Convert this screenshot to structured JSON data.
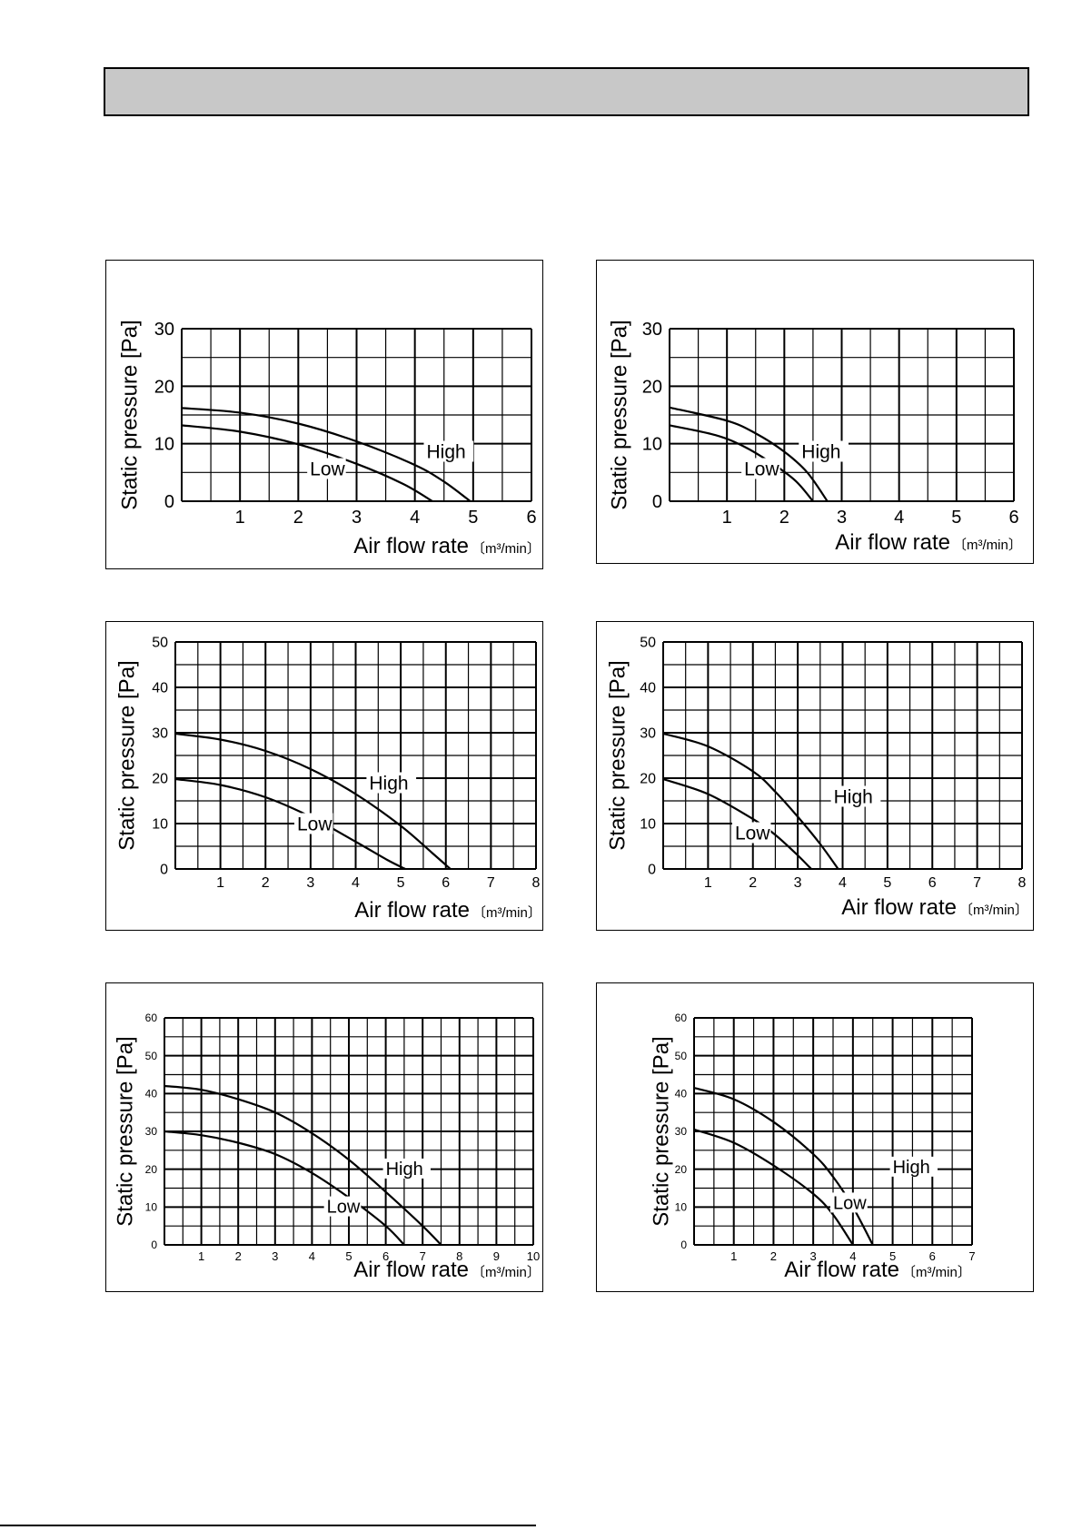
{
  "chart_data": [
    {
      "type": "line",
      "ylabel": "Static pressure [Pa]",
      "xlabel": "Air flow rate",
      "xunit": "〔m³/min〕",
      "xlim": [
        0,
        6
      ],
      "ylim": [
        0,
        30
      ],
      "xticks": [
        "1",
        "2",
        "3",
        "4",
        "5",
        "6"
      ],
      "yticks": [
        "0",
        "10",
        "20",
        "30"
      ],
      "grid": true,
      "series": [
        {
          "name": "High",
          "x": [
            0,
            1,
            2,
            3,
            4,
            4.5,
            4.95
          ],
          "y": [
            16.2,
            15.4,
            13.5,
            10.4,
            6.3,
            3.4,
            0
          ]
        },
        {
          "name": "Low",
          "x": [
            0,
            1,
            2,
            3,
            3.8,
            4.3
          ],
          "y": [
            13.2,
            12.1,
            9.9,
            6.5,
            3.0,
            0
          ]
        }
      ]
    },
    {
      "type": "line",
      "ylabel": "Static pressure [Pa]",
      "xlabel": "Air flow rate",
      "xunit": "〔m³/min〕",
      "xlim": [
        0,
        6
      ],
      "ylim": [
        0,
        30
      ],
      "xticks": [
        "1",
        "2",
        "3",
        "4",
        "5",
        "6"
      ],
      "yticks": [
        "0",
        "10",
        "20",
        "30"
      ],
      "grid": true,
      "series": [
        {
          "name": "High",
          "x": [
            0,
            1,
            1.5,
            2,
            2.4,
            2.75
          ],
          "y": [
            16.3,
            14.0,
            11.8,
            8.6,
            5.0,
            0
          ]
        },
        {
          "name": "Low",
          "x": [
            0,
            0.8,
            1.3,
            1.8,
            2.2,
            2.5
          ],
          "y": [
            13.2,
            11.5,
            9.5,
            6.5,
            3.5,
            0
          ]
        }
      ]
    },
    {
      "type": "line",
      "ylabel": "Static pressure [Pa]",
      "xlabel": "Air flow rate",
      "xunit": "〔m³/min〕",
      "xlim": [
        0,
        8
      ],
      "ylim": [
        0,
        50
      ],
      "xticks": [
        "1",
        "2",
        "3",
        "4",
        "5",
        "6",
        "7",
        "8"
      ],
      "yticks": [
        "0",
        "10",
        "20",
        "30",
        "40",
        "50"
      ],
      "grid": true,
      "series": [
        {
          "name": "High",
          "x": [
            0,
            1,
            2,
            3,
            4,
            5,
            5.7,
            6.1
          ],
          "y": [
            29.8,
            28.5,
            26.0,
            22.0,
            16.5,
            9.5,
            3.5,
            0
          ]
        },
        {
          "name": "Low",
          "x": [
            0,
            1,
            2,
            3,
            4,
            4.7,
            5.1
          ],
          "y": [
            19.8,
            18.5,
            15.8,
            11.5,
            6.0,
            2.0,
            0
          ]
        }
      ]
    },
    {
      "type": "line",
      "ylabel": "Static pressure [Pa]",
      "xlabel": "Air flow rate",
      "xunit": "〔m³/min〕",
      "xlim": [
        0,
        8
      ],
      "ylim": [
        0,
        50
      ],
      "xticks": [
        "1",
        "2",
        "3",
        "4",
        "5",
        "6",
        "7",
        "8"
      ],
      "yticks": [
        "0",
        "10",
        "20",
        "30",
        "40",
        "50"
      ],
      "grid": true,
      "series": [
        {
          "name": "High",
          "x": [
            0,
            1,
            2,
            2.5,
            3,
            3.5,
            3.9
          ],
          "y": [
            29.8,
            27.0,
            21.5,
            17.0,
            11.5,
            5.5,
            0
          ]
        },
        {
          "name": "Low",
          "x": [
            0,
            1,
            2,
            2.5,
            3,
            3.3
          ],
          "y": [
            19.8,
            16.5,
            11.0,
            7.5,
            3.0,
            0
          ]
        }
      ]
    },
    {
      "type": "line",
      "ylabel": "Static pressure [Pa]",
      "xlabel": "Air flow rate",
      "xunit": "〔m³/min〕",
      "xlim": [
        0,
        10
      ],
      "ylim": [
        0,
        60
      ],
      "xticks": [
        "1",
        "2",
        "3",
        "4",
        "5",
        "6",
        "7",
        "8",
        "9",
        "10"
      ],
      "yticks": [
        "0",
        "10",
        "20",
        "30",
        "40",
        "50",
        "60"
      ],
      "grid": true,
      "series": [
        {
          "name": "High",
          "x": [
            0,
            1,
            2,
            3,
            4,
            5,
            6,
            7,
            7.5
          ],
          "y": [
            42.0,
            41.0,
            38.5,
            35.0,
            29.5,
            22.5,
            14.0,
            5.0,
            0
          ]
        },
        {
          "name": "Low",
          "x": [
            0,
            1,
            2,
            3,
            4,
            5,
            6,
            6.5
          ],
          "y": [
            30.0,
            29.0,
            27.0,
            24.0,
            19.0,
            12.5,
            5.0,
            0
          ]
        }
      ]
    },
    {
      "type": "line",
      "ylabel": "Static pressure [Pa]",
      "xlabel": "Air flow rate",
      "xunit": "〔m³/min〕",
      "xlim": [
        0,
        7
      ],
      "ylim": [
        0,
        60
      ],
      "xticks": [
        "1",
        "2",
        "3",
        "4",
        "5",
        "6",
        "7"
      ],
      "yticks": [
        "0",
        "10",
        "20",
        "30",
        "40",
        "50",
        "60"
      ],
      "grid": true,
      "series": [
        {
          "name": "High",
          "x": [
            0,
            1,
            2,
            3,
            3.5,
            4,
            4.5
          ],
          "y": [
            41.5,
            38.5,
            32.5,
            24.0,
            18.0,
            10.0,
            0
          ]
        },
        {
          "name": "Low",
          "x": [
            0,
            1,
            2,
            3,
            3.5,
            4
          ],
          "y": [
            30.5,
            27.0,
            21.0,
            13.5,
            8.0,
            0
          ]
        }
      ]
    }
  ]
}
